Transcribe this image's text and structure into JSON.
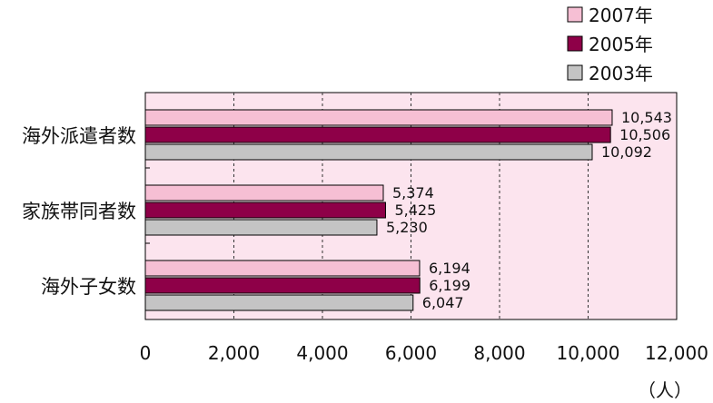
{
  "chart_data": {
    "type": "bar",
    "orientation": "horizontal",
    "categories": [
      "海外派遣者数",
      "家族帯同者数",
      "海外子女数"
    ],
    "series": [
      {
        "name": "2007年",
        "color": "#F6BFD4",
        "values": [
          10543,
          5374,
          6194
        ],
        "labels": [
          "10,543",
          "5,374",
          "6,194"
        ]
      },
      {
        "name": "2005年",
        "color": "#8E0048",
        "values": [
          10506,
          5425,
          6199
        ],
        "labels": [
          "10,506",
          "5,425",
          "6,199"
        ]
      },
      {
        "name": "2003年",
        "color": "#C4C4C4",
        "values": [
          10092,
          5230,
          6047
        ],
        "labels": [
          "10,092",
          "5,230",
          "6,047"
        ]
      }
    ],
    "xlim": [
      0,
      12000
    ],
    "xticks": [
      0,
      2000,
      4000,
      6000,
      8000,
      10000,
      12000
    ],
    "xtick_labels": [
      "0",
      "2,000",
      "4,000",
      "6,000",
      "8,000",
      "10,000",
      "12,000"
    ],
    "xlabel": "（人）",
    "grid": "vertical dashed",
    "legend": "top-right",
    "plot_background": "#FCE4EE"
  }
}
